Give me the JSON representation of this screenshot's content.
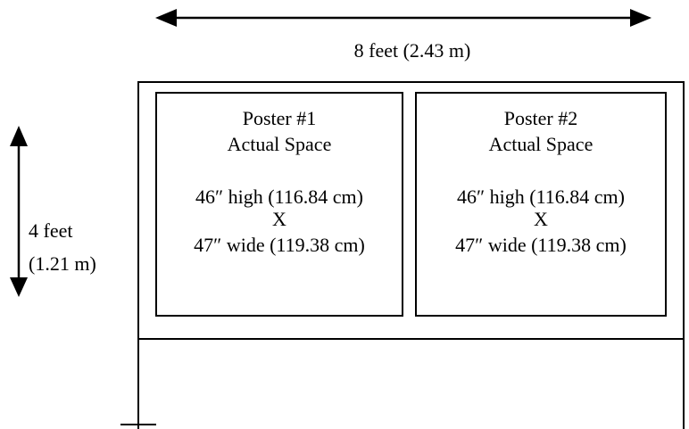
{
  "width_label": "8 feet (2.43 m)",
  "height_label": {
    "line1": "4 feet",
    "line2": "(1.21 m)"
  },
  "posters": [
    {
      "title": "Poster #1",
      "subtitle": "Actual Space",
      "height_text": "46″ high (116.84 cm)",
      "times": "X",
      "width_text": "47″ wide (119.38 cm)"
    },
    {
      "title": "Poster #2",
      "subtitle": "Actual Space",
      "height_text": "46″ high (116.84 cm)",
      "times": "X",
      "width_text": "47″ wide (119.38 cm)"
    }
  ]
}
